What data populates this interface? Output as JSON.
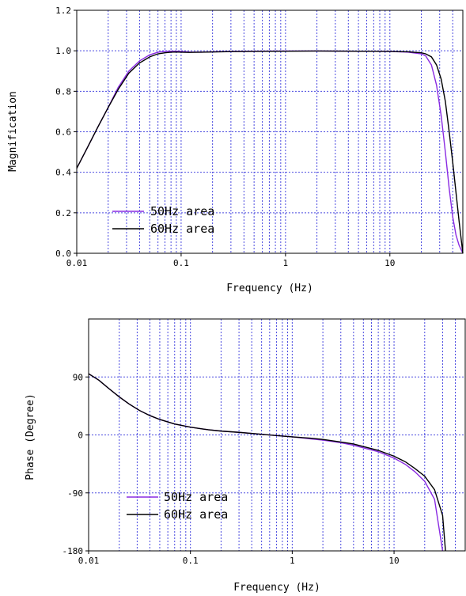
{
  "chart_data": [
    {
      "type": "line",
      "xlabel": "Frequency (Hz)",
      "ylabel": "Magnification",
      "xscale": "log",
      "xlim": [
        0.01,
        50
      ],
      "ylim": [
        0.0,
        1.2
      ],
      "x_ticks": [
        "0.01",
        "0.1",
        "1",
        "10"
      ],
      "y_ticks": [
        "0.0",
        "0.2",
        "0.4",
        "0.6",
        "0.8",
        "1.0",
        "1.2"
      ],
      "grid": true,
      "legend": {
        "placement": "bottom-left"
      },
      "series": [
        {
          "name": "50Hz area",
          "color": "#8a2be2",
          "x": [
            0.01,
            0.0126,
            0.0158,
            0.02,
            0.025,
            0.0316,
            0.04,
            0.05,
            0.06,
            0.07,
            0.08,
            0.09,
            0.1,
            0.12,
            0.15,
            0.2,
            0.3,
            0.5,
            1,
            2,
            5,
            10,
            15,
            20,
            22,
            25,
            28,
            31,
            34,
            37,
            40,
            43,
            46,
            50
          ],
          "values": [
            0.42,
            0.52,
            0.62,
            0.72,
            0.82,
            0.9,
            0.95,
            0.98,
            0.993,
            0.997,
            0.998,
            0.998,
            0.997,
            0.994,
            0.993,
            0.995,
            0.997,
            0.998,
            0.999,
            0.999,
            0.998,
            0.997,
            0.993,
            0.985,
            0.975,
            0.93,
            0.83,
            0.68,
            0.5,
            0.32,
            0.18,
            0.09,
            0.04,
            0.0
          ]
        },
        {
          "name": "60Hz area",
          "color": "#000000",
          "x": [
            0.01,
            0.0126,
            0.0158,
            0.02,
            0.025,
            0.0316,
            0.04,
            0.05,
            0.06,
            0.07,
            0.08,
            0.09,
            0.1,
            0.12,
            0.15,
            0.2,
            0.3,
            0.5,
            1,
            2,
            5,
            10,
            15,
            20,
            22,
            25,
            28,
            31,
            34,
            37,
            40,
            43,
            46,
            50
          ],
          "values": [
            0.42,
            0.52,
            0.62,
            0.72,
            0.81,
            0.89,
            0.94,
            0.97,
            0.985,
            0.99,
            0.993,
            0.994,
            0.993,
            0.992,
            0.993,
            0.994,
            0.996,
            0.997,
            0.998,
            0.999,
            0.998,
            0.997,
            0.995,
            0.99,
            0.985,
            0.97,
            0.93,
            0.86,
            0.75,
            0.6,
            0.45,
            0.3,
            0.16,
            0.0
          ]
        }
      ]
    },
    {
      "type": "line",
      "xlabel": "Frequency (Hz)",
      "ylabel": "Phase (Degree)",
      "xscale": "log",
      "xlim": [
        0.01,
        50
      ],
      "ylim": [
        -180,
        180
      ],
      "x_ticks": [
        "0.01",
        "0.1",
        "1",
        "10"
      ],
      "y_ticks": [
        "90",
        "0",
        "-90",
        "-180"
      ],
      "grid": true,
      "legend": {
        "placement": "bottom-left"
      },
      "series": [
        {
          "name": "50Hz area",
          "color": "#8a2be2",
          "x": [
            0.01,
            0.0126,
            0.0158,
            0.02,
            0.025,
            0.0316,
            0.04,
            0.05,
            0.07,
            0.1,
            0.15,
            0.2,
            0.3,
            0.5,
            0.7,
            1,
            1.5,
            2,
            3,
            4,
            5,
            7,
            10,
            13,
            16,
            20,
            25,
            30
          ],
          "values": [
            95,
            85,
            72,
            59,
            48,
            38,
            30,
            24,
            17,
            12,
            8,
            6,
            4,
            1,
            -1,
            -3,
            -6,
            -8,
            -12,
            -16,
            -20,
            -26,
            -36,
            -46,
            -57,
            -72,
            -100,
            -180
          ]
        },
        {
          "name": "60Hz area",
          "color": "#000000",
          "x": [
            0.01,
            0.0126,
            0.0158,
            0.02,
            0.025,
            0.0316,
            0.04,
            0.05,
            0.07,
            0.1,
            0.15,
            0.2,
            0.3,
            0.5,
            0.7,
            1,
            1.5,
            2,
            3,
            4,
            5,
            7,
            10,
            13,
            16,
            20,
            25,
            30,
            32
          ],
          "values": [
            95,
            85,
            72,
            59,
            48,
            38,
            30,
            24,
            17,
            12,
            8,
            6,
            4,
            1,
            -1,
            -3,
            -5,
            -7,
            -11,
            -14,
            -18,
            -24,
            -33,
            -42,
            -52,
            -64,
            -85,
            -125,
            -180
          ]
        }
      ]
    }
  ]
}
